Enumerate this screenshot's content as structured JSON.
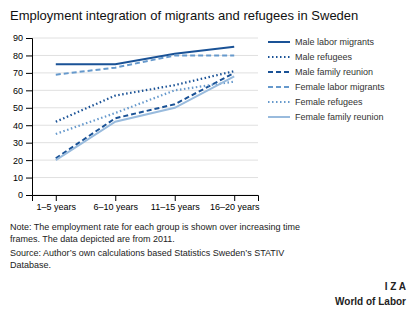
{
  "chart_data": {
    "type": "line",
    "title": "Employment integration of migrants and refugees in Sweden",
    "categories": [
      "1–5 years",
      "6–10 years",
      "11–15 years",
      "16–20 years"
    ],
    "series": [
      {
        "name": "Male labor migrants",
        "values": [
          75,
          75,
          81,
          85
        ],
        "color": "#1a5296",
        "line_style": "solid"
      },
      {
        "name": "Male refugees",
        "values": [
          42,
          57,
          63,
          71
        ],
        "color": "#1a5296",
        "line_style": "dotted"
      },
      {
        "name": "Male family reunion",
        "values": [
          21,
          44,
          52,
          70
        ],
        "color": "#1a5296",
        "line_style": "dashed"
      },
      {
        "name": "Female labor migrants",
        "values": [
          69,
          73,
          80,
          80
        ],
        "color": "#6699cc",
        "line_style": "dashed"
      },
      {
        "name": "Female refugees",
        "values": [
          35,
          47,
          60,
          65
        ],
        "color": "#6699cc",
        "line_style": "dotted"
      },
      {
        "name": "Female family reunion",
        "values": [
          20,
          42,
          50,
          68
        ],
        "color": "#99bbdd",
        "line_style": "solid"
      }
    ],
    "ylim": [
      0,
      90
    ],
    "yticks": [
      0,
      10,
      20,
      30,
      40,
      50,
      60,
      70,
      80,
      90
    ],
    "grid": true,
    "legend": "right",
    "annotations": [
      "Note: The employment rate for each group is shown over increasing time",
      "frames. The data depicted are from 2011.",
      "Source: Author’s own calculations based Statistics Sweden’s STATIV",
      "Database.",
      "I Z A",
      "World of Labor"
    ]
  }
}
